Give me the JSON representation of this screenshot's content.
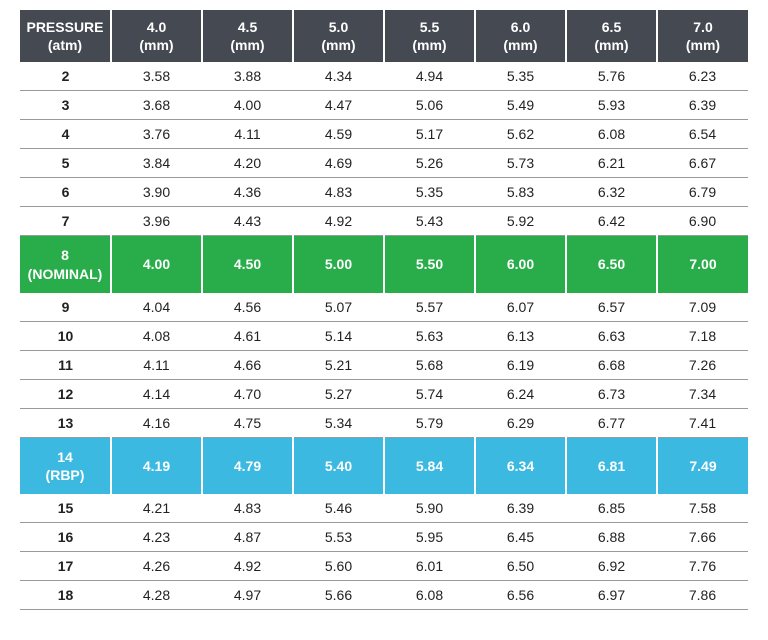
{
  "header": {
    "first_label": "PRESSURE",
    "first_unit": "(atm)",
    "cols": [
      "4.0",
      "4.5",
      "5.0",
      "5.5",
      "6.0",
      "6.5",
      "7.0"
    ],
    "unit": "(mm)",
    "bg": "#454a52",
    "fg": "#ffffff"
  },
  "nominal_row": {
    "label": "8",
    "sublabel": "(NOMINAL)",
    "values": [
      "4.00",
      "4.50",
      "5.00",
      "5.50",
      "6.00",
      "6.50",
      "7.00"
    ],
    "bg": "#28ad4a",
    "fg": "#ffffff"
  },
  "rbp_row": {
    "label": "14",
    "sublabel": "(RBP)",
    "values": [
      "4.19",
      "4.79",
      "5.40",
      "5.84",
      "6.34",
      "6.81",
      "7.49"
    ],
    "bg": "#3cb9e0",
    "fg": "#ffffff"
  },
  "rows": [
    {
      "p": "2",
      "v": [
        "3.58",
        "3.88",
        "4.34",
        "4.94",
        "5.35",
        "5.76",
        "6.23"
      ]
    },
    {
      "p": "3",
      "v": [
        "3.68",
        "4.00",
        "4.47",
        "5.06",
        "5.49",
        "5.93",
        "6.39"
      ]
    },
    {
      "p": "4",
      "v": [
        "3.76",
        "4.11",
        "4.59",
        "5.17",
        "5.62",
        "6.08",
        "6.54"
      ]
    },
    {
      "p": "5",
      "v": [
        "3.84",
        "4.20",
        "4.69",
        "5.26",
        "5.73",
        "6.21",
        "6.67"
      ]
    },
    {
      "p": "6",
      "v": [
        "3.90",
        "4.36",
        "4.83",
        "5.35",
        "5.83",
        "6.32",
        "6.79"
      ]
    },
    {
      "p": "7",
      "v": [
        "3.96",
        "4.43",
        "4.92",
        "5.43",
        "5.92",
        "6.42",
        "6.90"
      ]
    },
    {
      "p": "9",
      "v": [
        "4.04",
        "4.56",
        "5.07",
        "5.57",
        "6.07",
        "6.57",
        "7.09"
      ]
    },
    {
      "p": "10",
      "v": [
        "4.08",
        "4.61",
        "5.14",
        "5.63",
        "6.13",
        "6.63",
        "7.18"
      ]
    },
    {
      "p": "11",
      "v": [
        "4.11",
        "4.66",
        "5.21",
        "5.68",
        "6.19",
        "6.68",
        "7.26"
      ]
    },
    {
      "p": "12",
      "v": [
        "4.14",
        "4.70",
        "5.27",
        "5.74",
        "6.24",
        "6.73",
        "7.34"
      ]
    },
    {
      "p": "13",
      "v": [
        "4.16",
        "4.75",
        "5.34",
        "5.79",
        "6.29",
        "6.77",
        "7.41"
      ]
    },
    {
      "p": "15",
      "v": [
        "4.21",
        "4.83",
        "5.46",
        "5.90",
        "6.39",
        "6.85",
        "7.58"
      ]
    },
    {
      "p": "16",
      "v": [
        "4.23",
        "4.87",
        "5.53",
        "5.95",
        "6.45",
        "6.88",
        "7.66"
      ]
    },
    {
      "p": "17",
      "v": [
        "4.26",
        "4.92",
        "5.60",
        "6.01",
        "6.50",
        "6.92",
        "7.76"
      ]
    },
    {
      "p": "18",
      "v": [
        "4.28",
        "4.97",
        "5.66",
        "6.08",
        "6.56",
        "6.97",
        "7.86"
      ]
    }
  ]
}
